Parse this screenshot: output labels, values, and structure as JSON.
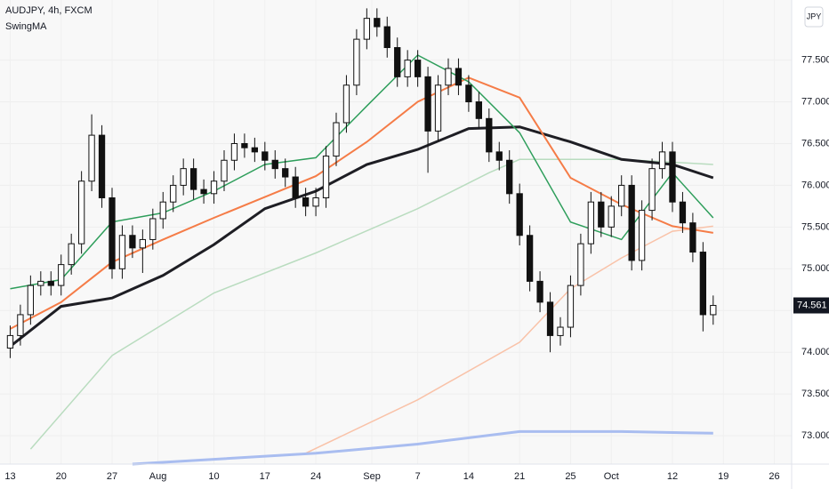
{
  "chart_data": {
    "type": "candlestick",
    "title": "AUDJPY, 4h, FXCM",
    "subtitle": "SwingMA",
    "currency": "JPY",
    "open": [
      74.05,
      74.2,
      74.45,
      74.8,
      74.85,
      74.8,
      75.05,
      75.3,
      76.05,
      76.6,
      75.85,
      75.0,
      75.4,
      75.25,
      75.35,
      75.6,
      75.8,
      76.0,
      76.2,
      75.95,
      75.9,
      76.05,
      76.3,
      76.5,
      76.45,
      76.4,
      76.3,
      76.2,
      76.1,
      75.85,
      75.75,
      75.85,
      76.35,
      76.75,
      77.2,
      77.75,
      78.0,
      77.9,
      77.65,
      77.3,
      77.5,
      77.3,
      76.65,
      77.2,
      77.4,
      77.2,
      77.0,
      76.8,
      76.4,
      76.3,
      75.9,
      75.4,
      74.85,
      74.6,
      74.2,
      74.3,
      74.8,
      75.3,
      75.8,
      75.5,
      75.75,
      76.0,
      75.1,
      75.7,
      76.2,
      76.4,
      75.8,
      75.55,
      75.2,
      74.45
    ],
    "high": [
      74.32,
      74.57,
      74.92,
      74.97,
      74.97,
      75.17,
      75.42,
      76.17,
      76.85,
      76.72,
      75.97,
      75.52,
      75.52,
      75.47,
      75.72,
      75.92,
      76.12,
      76.32,
      76.32,
      76.07,
      76.17,
      76.42,
      76.62,
      76.62,
      76.57,
      76.52,
      76.42,
      76.32,
      76.22,
      75.97,
      75.97,
      76.47,
      76.87,
      77.32,
      77.87,
      78.12,
      78.12,
      78.02,
      77.77,
      77.62,
      77.62,
      77.42,
      77.32,
      77.52,
      77.52,
      77.32,
      77.12,
      76.92,
      76.52,
      76.42,
      76.02,
      75.52,
      74.97,
      74.72,
      74.42,
      74.92,
      75.42,
      75.92,
      75.92,
      75.87,
      76.12,
      76.12,
      75.82,
      76.32,
      76.52,
      76.52,
      75.92,
      75.67,
      75.32,
      74.68
    ],
    "low": [
      73.93,
      74.08,
      74.33,
      74.68,
      74.68,
      74.68,
      74.93,
      75.18,
      75.93,
      75.73,
      74.88,
      74.88,
      75.13,
      74.95,
      75.23,
      75.48,
      75.68,
      75.88,
      75.83,
      75.78,
      75.78,
      75.93,
      76.18,
      76.33,
      76.28,
      76.18,
      76.08,
      75.98,
      75.73,
      75.63,
      75.63,
      75.73,
      76.23,
      76.63,
      77.08,
      77.63,
      77.78,
      77.53,
      77.18,
      77.18,
      77.18,
      76.15,
      76.53,
      77.08,
      77.08,
      76.88,
      76.68,
      76.28,
      76.18,
      75.78,
      75.28,
      74.73,
      74.48,
      74.0,
      74.08,
      74.18,
      74.68,
      75.18,
      75.38,
      75.38,
      75.63,
      74.98,
      74.98,
      75.58,
      76.08,
      75.68,
      75.43,
      75.08,
      74.25,
      74.33
    ],
    "close": [
      74.2,
      74.45,
      74.8,
      74.85,
      74.8,
      75.05,
      75.3,
      76.05,
      76.6,
      75.85,
      75.0,
      75.4,
      75.25,
      75.35,
      75.6,
      75.8,
      76.0,
      76.2,
      75.95,
      75.9,
      76.05,
      76.3,
      76.5,
      76.45,
      76.4,
      76.3,
      76.2,
      76.1,
      75.85,
      75.75,
      75.85,
      76.35,
      76.75,
      77.2,
      77.75,
      78.0,
      77.9,
      77.65,
      77.3,
      77.5,
      77.3,
      76.65,
      77.2,
      77.4,
      77.2,
      77.0,
      76.8,
      76.4,
      76.3,
      75.9,
      75.4,
      74.85,
      74.6,
      74.2,
      74.3,
      74.8,
      75.3,
      75.8,
      75.5,
      75.75,
      76.0,
      75.1,
      75.7,
      76.2,
      76.4,
      75.8,
      75.55,
      75.2,
      74.45,
      74.561
    ],
    "color_up": "#ffffff",
    "color_down": "#111111",
    "overlays": [
      {
        "color": "#b9dcbf",
        "width": 1.5,
        "x": [
          2,
          10,
          20,
          30,
          40,
          47,
          50,
          60,
          69
        ],
        "values": [
          72.84,
          73.96,
          74.71,
          75.19,
          75.72,
          76.15,
          76.31,
          76.31,
          76.25
        ]
      },
      {
        "color": "#f9c2a8",
        "width": 1.5,
        "x": [
          29,
          40,
          50,
          55,
          60,
          65,
          69
        ],
        "values": [
          72.79,
          73.43,
          74.12,
          74.76,
          75.13,
          75.45,
          75.51
        ]
      },
      {
        "color": "#a9bdf0",
        "width": 3,
        "x": [
          12,
          30,
          40,
          50,
          60,
          69
        ],
        "values": [
          72.66,
          72.79,
          72.9,
          73.05,
          73.05,
          73.03
        ]
      },
      {
        "color": "#1e1e24",
        "width": 3,
        "x": [
          0,
          5,
          10,
          15,
          20,
          25,
          30,
          35,
          40,
          45,
          50,
          55,
          60,
          65,
          69
        ],
        "values": [
          74.07,
          74.55,
          74.65,
          74.92,
          75.29,
          75.72,
          75.93,
          76.25,
          76.43,
          76.68,
          76.7,
          76.52,
          76.31,
          76.25,
          76.09
        ]
      },
      {
        "color": "#f57c47",
        "width": 2,
        "x": [
          0,
          5,
          10,
          15,
          20,
          25,
          30,
          35,
          40,
          45,
          50,
          55,
          60,
          65,
          69
        ],
        "values": [
          74.28,
          74.6,
          75.08,
          75.35,
          75.61,
          75.86,
          76.11,
          76.52,
          77.0,
          77.29,
          77.05,
          76.09,
          75.77,
          75.51,
          75.43
        ]
      },
      {
        "color": "#2e9e5b",
        "width": 1.5,
        "x": [
          0,
          5,
          10,
          15,
          20,
          25,
          30,
          35,
          40,
          45,
          50,
          55,
          60,
          65,
          69
        ],
        "values": [
          74.76,
          74.87,
          75.56,
          75.67,
          75.93,
          76.25,
          76.33,
          76.95,
          77.56,
          77.24,
          76.63,
          75.56,
          75.35,
          76.15,
          75.61
        ]
      }
    ],
    "xlim": [
      -1,
      76.7
    ],
    "ylim": [
      72.66,
      78.22
    ],
    "xticks": [
      {
        "value": 0,
        "label": "13"
      },
      {
        "value": 5,
        "label": "20"
      },
      {
        "value": 10,
        "label": "27"
      },
      {
        "value": 14.5,
        "label": "Aug"
      },
      {
        "value": 20,
        "label": "10"
      },
      {
        "value": 25,
        "label": "17"
      },
      {
        "value": 30,
        "label": "24"
      },
      {
        "value": 35.5,
        "label": "Sep"
      },
      {
        "value": 40,
        "label": "7"
      },
      {
        "value": 45,
        "label": "14"
      },
      {
        "value": 50,
        "label": "21"
      },
      {
        "value": 55,
        "label": "25"
      },
      {
        "value": 59,
        "label": "Oct"
      },
      {
        "value": 65,
        "label": "12"
      },
      {
        "value": 70,
        "label": "19"
      },
      {
        "value": 75,
        "label": "26"
      }
    ],
    "yticks": [
      {
        "value": 73,
        "label": "73.000"
      },
      {
        "value": 73.5,
        "label": "73.500"
      },
      {
        "value": 74,
        "label": "74.000"
      },
      {
        "value": 74.5,
        "label": "74.500"
      },
      {
        "value": 75,
        "label": "75.000"
      },
      {
        "value": 75.5,
        "label": "75.500"
      },
      {
        "value": 76,
        "label": "76.000"
      },
      {
        "value": 76.5,
        "label": "76.500"
      },
      {
        "value": 77,
        "label": "77.000"
      },
      {
        "value": 77.5,
        "label": "77.500"
      }
    ]
  }
}
